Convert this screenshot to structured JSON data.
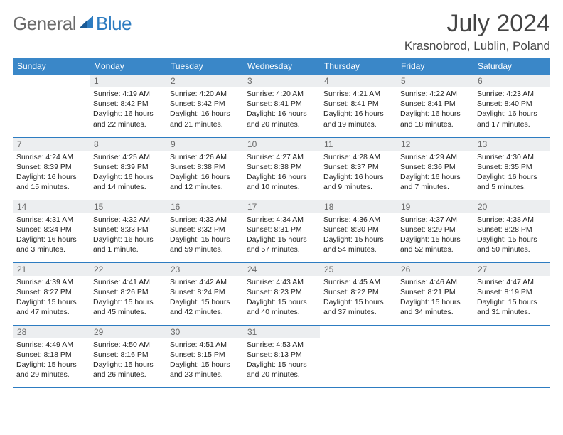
{
  "logo": {
    "text1": "General",
    "text2": "Blue"
  },
  "title": "July 2024",
  "location": "Krasnobrod, Lublin, Poland",
  "colors": {
    "header_bg": "#3a87c8",
    "border": "#2d7cc1",
    "daynum_bg": "#eceef0",
    "text_gray": "#6a6a6a",
    "text_dark": "#222222",
    "logo_blue": "#2d7cc1"
  },
  "weekdays": [
    "Sunday",
    "Monday",
    "Tuesday",
    "Wednesday",
    "Thursday",
    "Friday",
    "Saturday"
  ],
  "weeks": [
    [
      {
        "n": "",
        "sr": "",
        "ss": "",
        "dl": ""
      },
      {
        "n": "1",
        "sr": "Sunrise: 4:19 AM",
        "ss": "Sunset: 8:42 PM",
        "dl": "Daylight: 16 hours and 22 minutes."
      },
      {
        "n": "2",
        "sr": "Sunrise: 4:20 AM",
        "ss": "Sunset: 8:42 PM",
        "dl": "Daylight: 16 hours and 21 minutes."
      },
      {
        "n": "3",
        "sr": "Sunrise: 4:20 AM",
        "ss": "Sunset: 8:41 PM",
        "dl": "Daylight: 16 hours and 20 minutes."
      },
      {
        "n": "4",
        "sr": "Sunrise: 4:21 AM",
        "ss": "Sunset: 8:41 PM",
        "dl": "Daylight: 16 hours and 19 minutes."
      },
      {
        "n": "5",
        "sr": "Sunrise: 4:22 AM",
        "ss": "Sunset: 8:41 PM",
        "dl": "Daylight: 16 hours and 18 minutes."
      },
      {
        "n": "6",
        "sr": "Sunrise: 4:23 AM",
        "ss": "Sunset: 8:40 PM",
        "dl": "Daylight: 16 hours and 17 minutes."
      }
    ],
    [
      {
        "n": "7",
        "sr": "Sunrise: 4:24 AM",
        "ss": "Sunset: 8:39 PM",
        "dl": "Daylight: 16 hours and 15 minutes."
      },
      {
        "n": "8",
        "sr": "Sunrise: 4:25 AM",
        "ss": "Sunset: 8:39 PM",
        "dl": "Daylight: 16 hours and 14 minutes."
      },
      {
        "n": "9",
        "sr": "Sunrise: 4:26 AM",
        "ss": "Sunset: 8:38 PM",
        "dl": "Daylight: 16 hours and 12 minutes."
      },
      {
        "n": "10",
        "sr": "Sunrise: 4:27 AM",
        "ss": "Sunset: 8:38 PM",
        "dl": "Daylight: 16 hours and 10 minutes."
      },
      {
        "n": "11",
        "sr": "Sunrise: 4:28 AM",
        "ss": "Sunset: 8:37 PM",
        "dl": "Daylight: 16 hours and 9 minutes."
      },
      {
        "n": "12",
        "sr": "Sunrise: 4:29 AM",
        "ss": "Sunset: 8:36 PM",
        "dl": "Daylight: 16 hours and 7 minutes."
      },
      {
        "n": "13",
        "sr": "Sunrise: 4:30 AM",
        "ss": "Sunset: 8:35 PM",
        "dl": "Daylight: 16 hours and 5 minutes."
      }
    ],
    [
      {
        "n": "14",
        "sr": "Sunrise: 4:31 AM",
        "ss": "Sunset: 8:34 PM",
        "dl": "Daylight: 16 hours and 3 minutes."
      },
      {
        "n": "15",
        "sr": "Sunrise: 4:32 AM",
        "ss": "Sunset: 8:33 PM",
        "dl": "Daylight: 16 hours and 1 minute."
      },
      {
        "n": "16",
        "sr": "Sunrise: 4:33 AM",
        "ss": "Sunset: 8:32 PM",
        "dl": "Daylight: 15 hours and 59 minutes."
      },
      {
        "n": "17",
        "sr": "Sunrise: 4:34 AM",
        "ss": "Sunset: 8:31 PM",
        "dl": "Daylight: 15 hours and 57 minutes."
      },
      {
        "n": "18",
        "sr": "Sunrise: 4:36 AM",
        "ss": "Sunset: 8:30 PM",
        "dl": "Daylight: 15 hours and 54 minutes."
      },
      {
        "n": "19",
        "sr": "Sunrise: 4:37 AM",
        "ss": "Sunset: 8:29 PM",
        "dl": "Daylight: 15 hours and 52 minutes."
      },
      {
        "n": "20",
        "sr": "Sunrise: 4:38 AM",
        "ss": "Sunset: 8:28 PM",
        "dl": "Daylight: 15 hours and 50 minutes."
      }
    ],
    [
      {
        "n": "21",
        "sr": "Sunrise: 4:39 AM",
        "ss": "Sunset: 8:27 PM",
        "dl": "Daylight: 15 hours and 47 minutes."
      },
      {
        "n": "22",
        "sr": "Sunrise: 4:41 AM",
        "ss": "Sunset: 8:26 PM",
        "dl": "Daylight: 15 hours and 45 minutes."
      },
      {
        "n": "23",
        "sr": "Sunrise: 4:42 AM",
        "ss": "Sunset: 8:24 PM",
        "dl": "Daylight: 15 hours and 42 minutes."
      },
      {
        "n": "24",
        "sr": "Sunrise: 4:43 AM",
        "ss": "Sunset: 8:23 PM",
        "dl": "Daylight: 15 hours and 40 minutes."
      },
      {
        "n": "25",
        "sr": "Sunrise: 4:45 AM",
        "ss": "Sunset: 8:22 PM",
        "dl": "Daylight: 15 hours and 37 minutes."
      },
      {
        "n": "26",
        "sr": "Sunrise: 4:46 AM",
        "ss": "Sunset: 8:21 PM",
        "dl": "Daylight: 15 hours and 34 minutes."
      },
      {
        "n": "27",
        "sr": "Sunrise: 4:47 AM",
        "ss": "Sunset: 8:19 PM",
        "dl": "Daylight: 15 hours and 31 minutes."
      }
    ],
    [
      {
        "n": "28",
        "sr": "Sunrise: 4:49 AM",
        "ss": "Sunset: 8:18 PM",
        "dl": "Daylight: 15 hours and 29 minutes."
      },
      {
        "n": "29",
        "sr": "Sunrise: 4:50 AM",
        "ss": "Sunset: 8:16 PM",
        "dl": "Daylight: 15 hours and 26 minutes."
      },
      {
        "n": "30",
        "sr": "Sunrise: 4:51 AM",
        "ss": "Sunset: 8:15 PM",
        "dl": "Daylight: 15 hours and 23 minutes."
      },
      {
        "n": "31",
        "sr": "Sunrise: 4:53 AM",
        "ss": "Sunset: 8:13 PM",
        "dl": "Daylight: 15 hours and 20 minutes."
      },
      {
        "n": "",
        "sr": "",
        "ss": "",
        "dl": ""
      },
      {
        "n": "",
        "sr": "",
        "ss": "",
        "dl": ""
      },
      {
        "n": "",
        "sr": "",
        "ss": "",
        "dl": ""
      }
    ]
  ]
}
